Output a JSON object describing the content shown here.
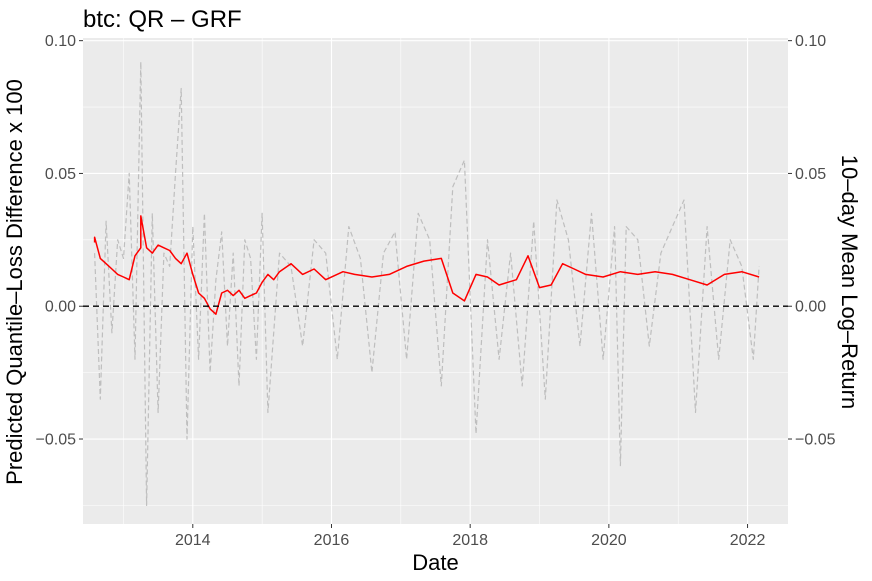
{
  "chart_data": {
    "type": "line",
    "title": "btc: QR – GRF",
    "xlabel": "Date",
    "ylabel": "Predicted Quantile–Loss Difference x 100",
    "ylabel_right": "10–day Mean Log–Return",
    "xlim": [
      "2012-06-01",
      "2022-08-01"
    ],
    "ylim": [
      -0.082,
      0.101
    ],
    "grid": true,
    "x_ticks": [
      "2014",
      "2016",
      "2018",
      "2020",
      "2022"
    ],
    "y_ticks": [
      "-0.05",
      "0.00",
      "0.05",
      "0.10"
    ],
    "y_ticks_right": [
      "-0.05",
      "0.00",
      "0.05",
      "0.10"
    ],
    "reference_line": {
      "y": 0,
      "style": "dashed",
      "color": "#000000"
    },
    "series": [
      {
        "color": "#ff0000",
        "style": "solid",
        "x": [
          "2012-08",
          "2012-08",
          "2012-09",
          "2012-10",
          "2012-11",
          "2012-12",
          "2013-01",
          "2013-02",
          "2013-03",
          "2013-04",
          "2013-04",
          "2013-05",
          "2013-06",
          "2013-07",
          "2013-08",
          "2013-09",
          "2013-10",
          "2013-11",
          "2013-12",
          "2014-01",
          "2014-02",
          "2014-03",
          "2014-04",
          "2014-05",
          "2014-06",
          "2014-07",
          "2014-08",
          "2014-09",
          "2014-10",
          "2014-11",
          "2014-12",
          "2015-01",
          "2015-02",
          "2015-03",
          "2015-04",
          "2015-06",
          "2015-08",
          "2015-10",
          "2015-12",
          "2016-03",
          "2016-05",
          "2016-08",
          "2016-11",
          "2017-02",
          "2017-05",
          "2017-08",
          "2017-10",
          "2017-12",
          "2018-02",
          "2018-04",
          "2018-06",
          "2018-09",
          "2018-11",
          "2019-01",
          "2019-03",
          "2019-05",
          "2019-07",
          "2019-09",
          "2019-12",
          "2020-03",
          "2020-06",
          "2020-09",
          "2020-12",
          "2021-03",
          "2021-06",
          "2021-09",
          "2021-12",
          "2022-03"
        ],
        "values": [
          0.024,
          0.026,
          0.018,
          0.016,
          0.014,
          0.012,
          0.011,
          0.01,
          0.019,
          0.022,
          0.034,
          0.022,
          0.02,
          0.023,
          0.022,
          0.021,
          0.018,
          0.016,
          0.02,
          0.012,
          0.005,
          0.003,
          -0.001,
          -0.003,
          0.005,
          0.006,
          0.004,
          0.006,
          0.003,
          0.004,
          0.005,
          0.009,
          0.012,
          0.01,
          0.013,
          0.016,
          0.012,
          0.014,
          0.01,
          0.013,
          0.012,
          0.011,
          0.012,
          0.015,
          0.017,
          0.018,
          0.005,
          0.002,
          0.012,
          0.011,
          0.008,
          0.01,
          0.019,
          0.007,
          0.008,
          0.016,
          0.014,
          0.012,
          0.011,
          0.013,
          0.012,
          0.013,
          0.012,
          0.01,
          0.008,
          0.012,
          0.013,
          0.011
        ]
      },
      {
        "color": "#bebebe",
        "style": "dashed",
        "x": [
          "2012-08",
          "2012-09",
          "2012-10",
          "2012-11",
          "2012-12",
          "2013-01",
          "2013-02",
          "2013-03",
          "2013-04",
          "2013-05",
          "2013-06",
          "2013-07",
          "2013-08",
          "2013-09",
          "2013-10",
          "2013-11",
          "2013-12",
          "2014-01",
          "2014-02",
          "2014-03",
          "2014-04",
          "2014-05",
          "2014-06",
          "2014-07",
          "2014-08",
          "2014-09",
          "2014-10",
          "2014-11",
          "2014-12",
          "2015-01",
          "2015-02",
          "2015-04",
          "2015-06",
          "2015-08",
          "2015-10",
          "2015-12",
          "2016-02",
          "2016-04",
          "2016-06",
          "2016-08",
          "2016-10",
          "2016-12",
          "2017-02",
          "2017-04",
          "2017-06",
          "2017-08",
          "2017-10",
          "2017-12",
          "2018-02",
          "2018-04",
          "2018-06",
          "2018-08",
          "2018-10",
          "2018-12",
          "2019-02",
          "2019-04",
          "2019-06",
          "2019-08",
          "2019-10",
          "2019-12",
          "2020-02",
          "2020-03",
          "2020-04",
          "2020-06",
          "2020-08",
          "2020-10",
          "2020-12",
          "2021-02",
          "2021-04",
          "2021-06",
          "2021-08",
          "2021-10",
          "2021-12",
          "2022-02",
          "2022-03"
        ],
        "values": [
          0.02,
          -0.035,
          0.032,
          -0.01,
          0.025,
          0.018,
          0.05,
          -0.02,
          0.092,
          -0.075,
          0.035,
          -0.04,
          0.02,
          0.015,
          0.05,
          0.082,
          -0.05,
          0.03,
          -0.02,
          0.035,
          -0.025,
          0.01,
          0.028,
          -0.015,
          0.02,
          -0.03,
          0.025,
          0.018,
          -0.02,
          0.035,
          -0.04,
          0.02,
          0.015,
          -0.015,
          0.025,
          0.02,
          -0.02,
          0.03,
          0.018,
          -0.025,
          0.02,
          0.028,
          -0.02,
          0.035,
          0.025,
          -0.03,
          0.045,
          0.055,
          -0.048,
          0.025,
          -0.02,
          0.02,
          -0.03,
          0.032,
          -0.035,
          0.04,
          0.025,
          -0.015,
          0.035,
          -0.02,
          0.03,
          -0.06,
          0.03,
          0.025,
          -0.015,
          0.02,
          0.03,
          0.04,
          -0.04,
          0.03,
          -0.02,
          0.025,
          0.015,
          -0.02,
          0.015
        ]
      }
    ]
  }
}
